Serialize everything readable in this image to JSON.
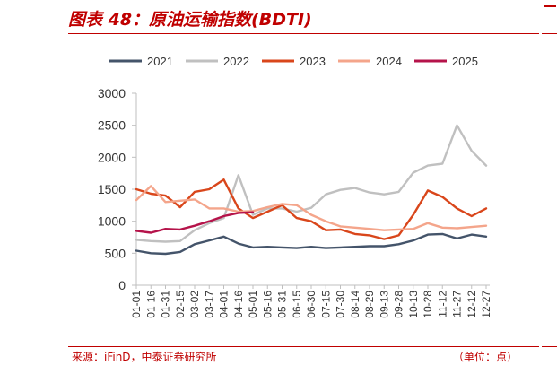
{
  "header": {
    "title": "图表 48：原油运输指数(BDTI)"
  },
  "footer": {
    "source": "来源：iFinD，中泰证券研究所",
    "unit": "（单位：点）"
  },
  "colors": {
    "accent": "#c00000",
    "axis": "#bfbfbf"
  },
  "chart_data": {
    "type": "line",
    "title": "原油运输指数(BDTI)",
    "xlabel": "",
    "ylabel": "",
    "ylim": [
      0,
      3000
    ],
    "yticks": [
      0,
      500,
      1000,
      1500,
      2000,
      2500,
      3000
    ],
    "legend_position": "top",
    "grid": false,
    "categories": [
      "01-01",
      "01-16",
      "01-31",
      "02-15",
      "03-02",
      "03-17",
      "04-01",
      "04-16",
      "05-01",
      "05-16",
      "05-31",
      "06-15",
      "06-30",
      "07-15",
      "07-30",
      "08-14",
      "08-29",
      "09-13",
      "09-28",
      "10-13",
      "10-28",
      "11-12",
      "11-27",
      "12-12",
      "12-27"
    ],
    "series": [
      {
        "name": "2021",
        "color": "#44546a",
        "values": [
          540,
          500,
          490,
          520,
          640,
          700,
          760,
          650,
          590,
          600,
          590,
          580,
          600,
          580,
          590,
          600,
          610,
          610,
          640,
          700,
          790,
          800,
          730,
          790,
          760
        ]
      },
      {
        "name": "2022",
        "color": "#c0c0c0",
        "values": [
          710,
          690,
          680,
          690,
          860,
          970,
          1050,
          1720,
          1100,
          1200,
          1200,
          1150,
          1210,
          1420,
          1490,
          1520,
          1450,
          1420,
          1460,
          1760,
          1870,
          1900,
          2500,
          2100,
          1870
        ]
      },
      {
        "name": "2023",
        "color": "#d9461b",
        "values": [
          1500,
          1430,
          1400,
          1220,
          1460,
          1500,
          1650,
          1200,
          1050,
          1150,
          1250,
          1050,
          1000,
          860,
          870,
          800,
          780,
          720,
          780,
          1100,
          1480,
          1380,
          1200,
          1080,
          1200
        ]
      },
      {
        "name": "2024",
        "color": "#f4a58b",
        "values": [
          1330,
          1550,
          1300,
          1320,
          1340,
          1200,
          1200,
          1150,
          1160,
          1220,
          1270,
          1250,
          1100,
          1000,
          920,
          900,
          880,
          860,
          870,
          880,
          970,
          900,
          890,
          910,
          930
        ]
      },
      {
        "name": "2025",
        "color": "#b5134a",
        "values": [
          850,
          820,
          880,
          870,
          930,
          1000,
          1080,
          1130,
          1140,
          null,
          null,
          null,
          null,
          null,
          null,
          null,
          null,
          null,
          null,
          null,
          null,
          null,
          null,
          null,
          null
        ]
      }
    ]
  }
}
